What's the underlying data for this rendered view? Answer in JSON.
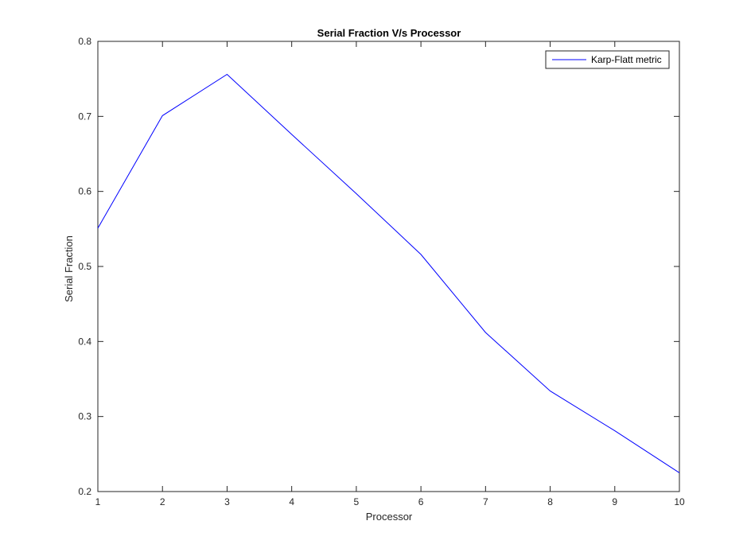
{
  "chart_data": {
    "type": "line",
    "title": "Serial Fraction V/s Processor",
    "xlabel": "Processor",
    "ylabel": "Serial Fraction",
    "xlim": [
      1,
      10
    ],
    "ylim": [
      0.2,
      0.8
    ],
    "x_ticks": [
      1,
      2,
      3,
      4,
      5,
      6,
      7,
      8,
      9,
      10
    ],
    "y_ticks": [
      0.2,
      0.3,
      0.4,
      0.5,
      0.6,
      0.7,
      0.8
    ],
    "grid": false,
    "legend_position": "top-right",
    "series": [
      {
        "name": "Karp-Flatt metric",
        "color": "#0000ff",
        "x": [
          1,
          2,
          3,
          4,
          5,
          6,
          7,
          8,
          9,
          10
        ],
        "y": [
          0.551,
          0.701,
          0.756,
          0.676,
          0.597,
          0.516,
          0.412,
          0.334,
          0.281,
          0.225
        ]
      }
    ]
  }
}
